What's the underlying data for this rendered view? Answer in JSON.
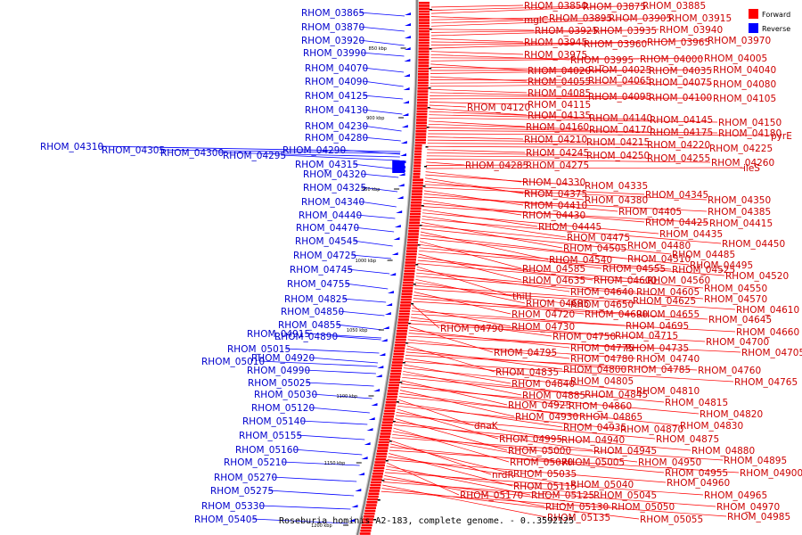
{
  "caption": "Roseburia hominis A2-183, complete genome. - 0..3592125",
  "legend": [
    {
      "label": "Forward",
      "color": "#ff0000"
    },
    {
      "label": "Reverse",
      "color": "#0000ff"
    }
  ],
  "colors": {
    "forward": "#ff0000",
    "reverse": "#0000ff",
    "forward_text": "#cc0000",
    "reverse_text": "#0000cc",
    "backbone": "#888888"
  },
  "ticks": [
    "850 kbp",
    "900 kbp",
    "950 kbp",
    "1000 kbp",
    "1050 kbp",
    "1100 kbp",
    "1150 kbp",
    "1200 kbp"
  ],
  "reverse_labels": [
    "RHOM_03865",
    "RHOM_03870",
    "RHOM_03920",
    "RHOM_03990",
    "RHOM_04070",
    "RHOM_04090",
    "RHOM_04125",
    "RHOM_04130",
    "RHOM_04230",
    "RHOM_04280",
    "RHOM_04290",
    "RHOM_04315",
    "RHOM_04320",
    "RHOM_04325",
    "RHOM_04340",
    "RHOM_04440",
    "RHOM_04470",
    "RHOM_04545",
    "RHOM_04725",
    "RHOM_04745",
    "RHOM_04755",
    "RHOM_04825",
    "RHOM_04850",
    "RHOM_04855",
    "RHOM_04890",
    "RHOM_04915",
    "RHOM_04920",
    "RHOM_04990",
    "RHOM_05015",
    "RHOM_05010",
    "RHOM_05025",
    "RHOM_05030",
    "RHOM_05120",
    "RHOM_05140",
    "RHOM_05155",
    "RHOM_05160",
    "RHOM_05210",
    "RHOM_05270",
    "RHOM_05275",
    "RHOM_05330",
    "RHOM_05405",
    "RHOM_04310",
    "RHOM_04305",
    "RHOM_04300",
    "RHOM_04295"
  ],
  "forward_labels": [
    "RHOM_03850",
    "RHOM_03875",
    "RHOM_03885",
    "mglC",
    "RHOM_03895",
    "RHOM_03905",
    "RHOM_03915",
    "RHOM_03925",
    "RHOM_03935",
    "RHOM_03940",
    "RHOM_03945",
    "RHOM_03960",
    "RHOM_03965",
    "RHOM_03970",
    "RHOM_03975",
    "RHOM_03995",
    "RHOM_04000",
    "RHOM_04005",
    "RHOM_04020",
    "RHOM_04025",
    "RHOM_04035",
    "RHOM_04040",
    "RHOM_04055",
    "RHOM_04065",
    "RHOM_04075",
    "RHOM_04080",
    "RHOM_04085",
    "RHOM_04095",
    "RHOM_04100",
    "RHOM_04105",
    "RHOM_04115",
    "RHOM_04120",
    "RHOM_04135",
    "RHOM_04140",
    "RHOM_04145",
    "RHOM_04150",
    "RHOM_04160",
    "RHOM_04170",
    "RHOM_04175",
    "RHOM_04180",
    "pyrE",
    "RHOM_04210",
    "RHOM_04215",
    "RHOM_04220",
    "RHOM_04225",
    "RHOM_04245",
    "RHOM_04250",
    "RHOM_04255",
    "RHOM_04260",
    "RHOM_04285",
    "RHOM_04275",
    "ileS",
    "RHOM_04330",
    "RHOM_04335",
    "RHOM_04375",
    "RHOM_04380",
    "RHOM_04345",
    "RHOM_04350",
    "RHOM_04410",
    "RHOM_04405",
    "RHOM_04385",
    "RHOM_04430",
    "RHOM_04425",
    "RHOM_04415",
    "RHOM_04445",
    "RHOM_04435",
    "RHOM_04475",
    "RHOM_04450",
    "RHOM_04505",
    "RHOM_04480",
    "RHOM_04485",
    "RHOM_04540",
    "RHOM_04510",
    "RHOM_04495",
    "RHOM_04585",
    "RHOM_04555",
    "RHOM_04525",
    "RHOM_04520",
    "RHOM_04635",
    "RHOM_04600",
    "RHOM_04560",
    "RHOM_04550",
    "thiH",
    "RHOM_04640",
    "RHOM_04605",
    "RHOM_04570",
    "RHOM_04685",
    "RHOM_04650",
    "RHOM_04625",
    "RHOM_04610",
    "RHOM_04720",
    "RHOM_04690",
    "RHOM_04655",
    "RHOM_04645",
    "RHOM_04790",
    "RHOM_04730",
    "RHOM_04695",
    "RHOM_04660",
    "RHOM_04750",
    "RHOM_04715",
    "RHOM_04700",
    "RHOM_04795",
    "RHOM_04775",
    "RHOM_04735",
    "RHOM_04705",
    "RHOM_04780",
    "RHOM_04740",
    "RHOM_04835",
    "RHOM_04800",
    "RHOM_04785",
    "RHOM_04760",
    "RHOM_04805",
    "RHOM_04765",
    "RHOM_04840",
    "RHOM_04810",
    "RHOM_04885",
    "RHOM_04845",
    "RHOM_04815",
    "RHOM_04925",
    "RHOM_04860",
    "RHOM_04820",
    "RHOM_04930",
    "RHOM_04865",
    "RHOM_04830",
    "dnaK",
    "RHOM_04935",
    "RHOM_04870",
    "RHOM_04995",
    "RHOM_04940",
    "RHOM_04875",
    "RHOM_05000",
    "RHOM_04945",
    "RHOM_04880",
    "RHOM_05070",
    "RHOM_05005",
    "RHOM_04950",
    "RHOM_04895",
    "nrdR",
    "RHOM_05035",
    "RHOM_04955",
    "RHOM_04900",
    "RHOM_05115",
    "RHOM_05040",
    "RHOM_04960",
    "RHOM_05170",
    "RHOM_05125",
    "RHOM_05045",
    "RHOM_04965",
    "RHOM_05130",
    "RHOM_05050",
    "RHOM_04970",
    "RHOM_05135",
    "RHOM_05055",
    "RHOM_04985"
  ]
}
